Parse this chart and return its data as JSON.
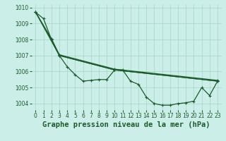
{
  "title": "Graphe pression niveau de la mer (hPa)",
  "background_color": "#cceee8",
  "grid_color": "#aad8d0",
  "line_color": "#1a5c28",
  "xlim": [
    -0.5,
    23.5
  ],
  "ylim": [
    1003.6,
    1010.2
  ],
  "yticks": [
    1004,
    1005,
    1006,
    1007,
    1008,
    1009,
    1010
  ],
  "xticks": [
    0,
    1,
    2,
    3,
    4,
    5,
    6,
    7,
    8,
    9,
    10,
    11,
    12,
    13,
    14,
    15,
    16,
    17,
    18,
    19,
    20,
    21,
    22,
    23
  ],
  "lines": [
    {
      "x": [
        0,
        1,
        2,
        3,
        4,
        5,
        6,
        7,
        8,
        9,
        10,
        11,
        12,
        13,
        14,
        15,
        16,
        17,
        18,
        19,
        20,
        21,
        22,
        23
      ],
      "y": [
        1009.7,
        1009.3,
        1008.0,
        1007.0,
        1006.3,
        1005.8,
        1005.4,
        1005.45,
        1005.5,
        1005.5,
        1006.1,
        1006.1,
        1005.4,
        1005.2,
        1004.4,
        1004.0,
        1003.9,
        1003.9,
        1004.0,
        1004.05,
        1004.15,
        1005.0,
        1004.5,
        1005.4
      ]
    },
    {
      "x": [
        0,
        2,
        3,
        10,
        23
      ],
      "y": [
        1009.7,
        1008.0,
        1007.0,
        1006.1,
        1005.4
      ]
    },
    {
      "x": [
        0,
        2,
        3,
        10,
        23
      ],
      "y": [
        1009.7,
        1008.05,
        1007.05,
        1006.15,
        1005.45
      ]
    },
    {
      "x": [
        0,
        3,
        10,
        23
      ],
      "y": [
        1009.7,
        1007.0,
        1006.1,
        1005.4
      ]
    }
  ],
  "title_fontsize": 7.5,
  "tick_fontsize": 5.5
}
